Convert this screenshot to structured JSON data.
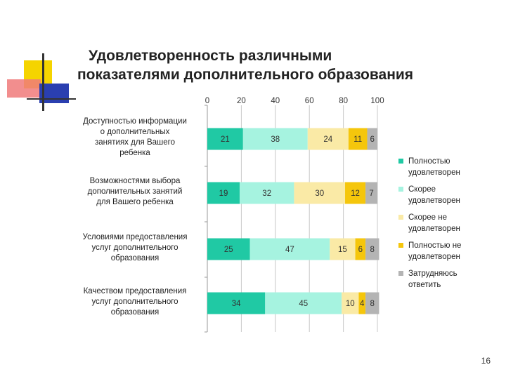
{
  "slide": {
    "title_line1": "Удовлетворенность различными",
    "title_line2": "показателями дополнительного образования",
    "page_number": "16"
  },
  "colors": {
    "series": [
      "#20c9a4",
      "#a6f3e0",
      "#faeaa6",
      "#f5c60c",
      "#b4b4b4"
    ]
  },
  "chart_data": {
    "type": "bar",
    "orientation": "horizontal",
    "stacked": true,
    "categories": [
      "Доступностью информации о дополнительных занятиях для Вашего ребенка",
      "Возможностями выбора дополнительных занятий для Вашего ребенка",
      "Условиями предоставления услуг дополнительного образования",
      "Качеством предоставления услуг дополнительного образования"
    ],
    "category_lines": [
      [
        "Доступностью информации",
        "о дополнительных",
        "занятиях для Вашего",
        "ребенка"
      ],
      [
        "Возможностями выбора",
        "дополнительных занятий",
        "для Вашего ребенка"
      ],
      [
        "Условиями предоставления",
        "услуг дополнительного",
        "образования"
      ],
      [
        "Качеством предоставления",
        "услуг дополнительного",
        "образования"
      ]
    ],
    "series": [
      {
        "name": "Полностью удовлетворен",
        "values": [
          21,
          19,
          25,
          34
        ]
      },
      {
        "name": "Скорее удовлетворен",
        "values": [
          38,
          32,
          47,
          45
        ]
      },
      {
        "name": "Скорее не удовлетворен",
        "values": [
          24,
          30,
          15,
          10
        ]
      },
      {
        "name": "Полностью не удовлетворен",
        "values": [
          11,
          12,
          6,
          4
        ]
      },
      {
        "name": "Затрудняюсь ответить",
        "values": [
          6,
          7,
          8,
          8
        ]
      }
    ],
    "legend_lines": [
      [
        "Полностью",
        "удовлетворен"
      ],
      [
        "Скорее",
        "удовлетворен"
      ],
      [
        "Скорее не",
        "удовлетворен"
      ],
      [
        "Полностью не",
        "удовлетворен"
      ],
      [
        "Затрудняюсь",
        "ответить"
      ]
    ],
    "xlim": [
      0,
      100
    ],
    "x_ticks": [
      0,
      20,
      40,
      60,
      80,
      100
    ],
    "grid": true,
    "legend_position": "right"
  }
}
